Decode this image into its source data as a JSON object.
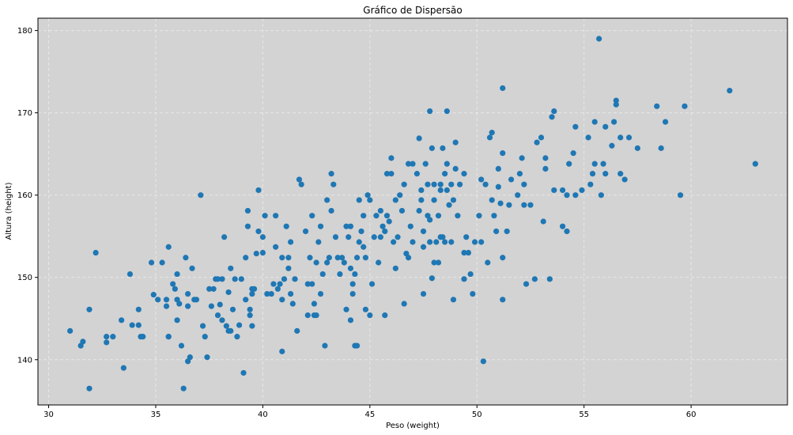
{
  "chart_data": {
    "type": "scatter",
    "title": "Gráfico de Dispersão",
    "xlabel": "Peso (weight)",
    "ylabel": "Altura (height)",
    "xlim": [
      29.5,
      64.5
    ],
    "ylim": [
      134.5,
      181.5
    ],
    "xticks": [
      30,
      35,
      40,
      45,
      50,
      55,
      60
    ],
    "yticks": [
      140,
      150,
      160,
      170,
      180
    ],
    "grid": true,
    "background": "#d3d3d3",
    "marker_color": "#1f77b4",
    "points": [
      [
        31.0,
        143.5
      ],
      [
        31.5,
        141.7
      ],
      [
        31.6,
        142.2
      ],
      [
        31.9,
        136.5
      ],
      [
        31.9,
        146.1
      ],
      [
        32.2,
        153.0
      ],
      [
        32.7,
        142.8
      ],
      [
        32.7,
        142.1
      ],
      [
        33.0,
        142.8
      ],
      [
        33.4,
        144.8
      ],
      [
        33.5,
        139.0
      ],
      [
        33.8,
        150.4
      ],
      [
        33.9,
        144.2
      ],
      [
        34.2,
        146.1
      ],
      [
        34.2,
        144.2
      ],
      [
        34.3,
        142.8
      ],
      [
        34.4,
        142.8
      ],
      [
        34.8,
        151.8
      ],
      [
        34.9,
        147.9
      ],
      [
        35.1,
        147.3
      ],
      [
        35.3,
        151.8
      ],
      [
        35.5,
        146.5
      ],
      [
        35.5,
        147.3
      ],
      [
        35.6,
        153.7
      ],
      [
        35.6,
        142.8
      ],
      [
        35.6,
        142.8
      ],
      [
        35.8,
        149.2
      ],
      [
        35.9,
        148.6
      ],
      [
        36.0,
        150.4
      ],
      [
        36.0,
        147.3
      ],
      [
        36.0,
        144.8
      ],
      [
        36.1,
        146.8
      ],
      [
        36.2,
        141.7
      ],
      [
        36.3,
        136.5
      ],
      [
        36.4,
        152.4
      ],
      [
        36.5,
        146.5
      ],
      [
        36.5,
        139.8
      ],
      [
        36.5,
        148.0
      ],
      [
        36.6,
        140.3
      ],
      [
        36.7,
        151.1
      ],
      [
        36.8,
        147.3
      ],
      [
        36.9,
        147.3
      ],
      [
        37.1,
        160.0
      ],
      [
        37.2,
        144.1
      ],
      [
        37.3,
        142.8
      ],
      [
        37.4,
        140.3
      ],
      [
        37.5,
        148.6
      ],
      [
        37.6,
        146.5
      ],
      [
        37.7,
        148.6
      ],
      [
        37.8,
        149.8
      ],
      [
        37.9,
        145.4
      ],
      [
        37.9,
        149.8
      ],
      [
        38.0,
        146.7
      ],
      [
        38.1,
        149.8
      ],
      [
        38.1,
        144.8
      ],
      [
        38.2,
        154.9
      ],
      [
        38.3,
        144.1
      ],
      [
        38.4,
        143.5
      ],
      [
        38.4,
        148.2
      ],
      [
        38.5,
        151.1
      ],
      [
        38.5,
        143.5
      ],
      [
        38.6,
        146.1
      ],
      [
        38.7,
        149.8
      ],
      [
        38.8,
        142.8
      ],
      [
        38.9,
        144.2
      ],
      [
        39.0,
        149.8
      ],
      [
        39.1,
        138.4
      ],
      [
        39.2,
        152.4
      ],
      [
        39.2,
        147.3
      ],
      [
        39.3,
        158.1
      ],
      [
        39.3,
        156.2
      ],
      [
        39.4,
        146.1
      ],
      [
        39.4,
        145.4
      ],
      [
        39.5,
        148.6
      ],
      [
        39.5,
        144.1
      ],
      [
        39.5,
        148.0
      ],
      [
        39.6,
        148.6
      ],
      [
        39.7,
        152.9
      ],
      [
        39.8,
        155.6
      ],
      [
        39.8,
        160.6
      ],
      [
        40.0,
        154.9
      ],
      [
        40.0,
        153.0
      ],
      [
        40.1,
        157.5
      ],
      [
        40.2,
        148.0
      ],
      [
        40.4,
        148.0
      ],
      [
        40.5,
        149.2
      ],
      [
        40.6,
        153.7
      ],
      [
        40.6,
        157.5
      ],
      [
        40.7,
        148.6
      ],
      [
        40.8,
        149.2
      ],
      [
        40.9,
        152.4
      ],
      [
        40.9,
        147.3
      ],
      [
        40.9,
        141.0
      ],
      [
        41.0,
        149.8
      ],
      [
        41.1,
        156.2
      ],
      [
        41.2,
        151.1
      ],
      [
        41.2,
        152.4
      ],
      [
        41.3,
        154.3
      ],
      [
        41.3,
        148.0
      ],
      [
        41.4,
        146.8
      ],
      [
        41.5,
        149.8
      ],
      [
        41.6,
        143.5
      ],
      [
        41.7,
        161.9
      ],
      [
        41.8,
        161.3
      ],
      [
        42.0,
        155.6
      ],
      [
        42.1,
        149.2
      ],
      [
        42.1,
        145.4
      ],
      [
        42.2,
        152.4
      ],
      [
        42.3,
        149.2
      ],
      [
        42.3,
        157.5
      ],
      [
        42.4,
        146.8
      ],
      [
        42.4,
        145.4
      ],
      [
        42.5,
        151.8
      ],
      [
        42.5,
        145.4
      ],
      [
        42.6,
        154.3
      ],
      [
        42.7,
        156.2
      ],
      [
        42.7,
        148.0
      ],
      [
        42.8,
        150.4
      ],
      [
        42.9,
        141.7
      ],
      [
        43.0,
        151.8
      ],
      [
        43.0,
        159.4
      ],
      [
        43.1,
        152.4
      ],
      [
        43.2,
        158.1
      ],
      [
        43.2,
        162.6
      ],
      [
        43.3,
        161.3
      ],
      [
        43.4,
        154.9
      ],
      [
        43.5,
        152.4
      ],
      [
        43.6,
        150.4
      ],
      [
        43.7,
        152.4
      ],
      [
        43.8,
        151.8
      ],
      [
        43.9,
        156.2
      ],
      [
        43.9,
        146.1
      ],
      [
        44.0,
        154.9
      ],
      [
        44.1,
        144.8
      ],
      [
        44.1,
        151.1
      ],
      [
        44.1,
        156.2
      ],
      [
        44.2,
        149.2
      ],
      [
        44.2,
        148.0
      ],
      [
        44.3,
        141.7
      ],
      [
        44.3,
        150.4
      ],
      [
        44.4,
        141.7
      ],
      [
        44.4,
        152.4
      ],
      [
        44.5,
        159.4
      ],
      [
        44.5,
        154.3
      ],
      [
        44.6,
        155.6
      ],
      [
        44.7,
        157.5
      ],
      [
        44.7,
        153.7
      ],
      [
        44.8,
        146.1
      ],
      [
        44.8,
        152.4
      ],
      [
        44.9,
        160.0
      ],
      [
        45.0,
        145.4
      ],
      [
        45.0,
        159.4
      ],
      [
        45.1,
        149.2
      ],
      [
        45.2,
        154.9
      ],
      [
        45.3,
        157.5
      ],
      [
        45.4,
        151.8
      ],
      [
        45.5,
        158.1
      ],
      [
        45.5,
        154.9
      ],
      [
        45.6,
        156.2
      ],
      [
        45.7,
        155.6
      ],
      [
        45.7,
        145.4
      ],
      [
        45.8,
        157.5
      ],
      [
        45.8,
        162.6
      ],
      [
        45.9,
        156.8
      ],
      [
        46.0,
        164.5
      ],
      [
        46.0,
        162.6
      ],
      [
        46.1,
        154.3
      ],
      [
        46.2,
        159.4
      ],
      [
        46.2,
        151.1
      ],
      [
        46.3,
        154.9
      ],
      [
        46.4,
        160.0
      ],
      [
        46.5,
        158.1
      ],
      [
        46.6,
        146.8
      ],
      [
        46.6,
        161.3
      ],
      [
        46.7,
        152.9
      ],
      [
        46.8,
        152.4
      ],
      [
        46.8,
        163.8
      ],
      [
        46.9,
        156.2
      ],
      [
        47.0,
        154.3
      ],
      [
        47.0,
        163.8
      ],
      [
        47.2,
        162.6
      ],
      [
        47.3,
        166.9
      ],
      [
        47.3,
        158.1
      ],
      [
        47.4,
        159.4
      ],
      [
        47.4,
        160.6
      ],
      [
        47.5,
        155.6
      ],
      [
        47.5,
        148.0
      ],
      [
        47.5,
        153.7
      ],
      [
        47.6,
        163.8
      ],
      [
        47.7,
        157.5
      ],
      [
        47.7,
        161.3
      ],
      [
        47.8,
        154.3
      ],
      [
        47.8,
        170.2
      ],
      [
        47.8,
        157.0
      ],
      [
        47.9,
        149.9
      ],
      [
        47.9,
        165.7
      ],
      [
        48.0,
        161.3
      ],
      [
        48.0,
        159.4
      ],
      [
        48.0,
        151.8
      ],
      [
        48.1,
        154.3
      ],
      [
        48.2,
        151.8
      ],
      [
        48.2,
        157.5
      ],
      [
        48.3,
        160.6
      ],
      [
        48.3,
        161.3
      ],
      [
        48.3,
        154.9
      ],
      [
        48.4,
        154.9
      ],
      [
        48.4,
        165.7
      ],
      [
        48.5,
        162.6
      ],
      [
        48.5,
        154.3
      ],
      [
        48.6,
        170.2
      ],
      [
        48.6,
        160.6
      ],
      [
        48.6,
        163.8
      ],
      [
        48.7,
        158.8
      ],
      [
        48.8,
        154.3
      ],
      [
        48.8,
        161.3
      ],
      [
        48.9,
        159.4
      ],
      [
        48.9,
        147.3
      ],
      [
        49.0,
        166.4
      ],
      [
        49.0,
        163.2
      ],
      [
        49.1,
        157.5
      ],
      [
        49.2,
        161.3
      ],
      [
        49.4,
        162.6
      ],
      [
        49.4,
        149.8
      ],
      [
        49.4,
        153.0
      ],
      [
        49.5,
        154.9
      ],
      [
        49.6,
        153.0
      ],
      [
        49.7,
        150.4
      ],
      [
        49.8,
        148.0
      ],
      [
        49.9,
        154.3
      ],
      [
        50.1,
        157.5
      ],
      [
        50.2,
        154.3
      ],
      [
        50.2,
        161.9
      ],
      [
        50.3,
        139.8
      ],
      [
        50.4,
        161.3
      ],
      [
        50.5,
        151.8
      ],
      [
        50.6,
        167.0
      ],
      [
        50.7,
        159.4
      ],
      [
        50.7,
        167.6
      ],
      [
        50.8,
        157.5
      ],
      [
        50.9,
        155.6
      ],
      [
        51.0,
        161.0
      ],
      [
        51.0,
        163.2
      ],
      [
        51.1,
        159.0
      ],
      [
        51.2,
        165.1
      ],
      [
        51.2,
        152.4
      ],
      [
        51.2,
        147.3
      ],
      [
        51.2,
        173.0
      ],
      [
        51.4,
        155.6
      ],
      [
        51.5,
        158.8
      ],
      [
        51.6,
        161.9
      ],
      [
        51.9,
        160.0
      ],
      [
        52.0,
        162.6
      ],
      [
        52.1,
        164.5
      ],
      [
        52.2,
        158.8
      ],
      [
        52.2,
        161.3
      ],
      [
        52.3,
        149.2
      ],
      [
        52.5,
        158.8
      ],
      [
        52.7,
        149.8
      ],
      [
        52.8,
        166.4
      ],
      [
        53.0,
        167.0
      ],
      [
        53.1,
        156.8
      ],
      [
        53.2,
        163.2
      ],
      [
        53.2,
        164.5
      ],
      [
        53.4,
        149.8
      ],
      [
        53.5,
        169.5
      ],
      [
        53.6,
        170.2
      ],
      [
        53.6,
        160.6
      ],
      [
        54.0,
        156.2
      ],
      [
        54.0,
        160.6
      ],
      [
        54.2,
        160.0
      ],
      [
        54.2,
        155.6
      ],
      [
        54.3,
        163.8
      ],
      [
        54.5,
        165.1
      ],
      [
        54.6,
        160.0
      ],
      [
        54.6,
        168.3
      ],
      [
        54.9,
        160.6
      ],
      [
        55.2,
        167.0
      ],
      [
        55.3,
        161.3
      ],
      [
        55.4,
        162.6
      ],
      [
        55.5,
        168.9
      ],
      [
        55.5,
        163.8
      ],
      [
        55.7,
        179.0
      ],
      [
        55.8,
        160.0
      ],
      [
        55.9,
        163.8
      ],
      [
        56.0,
        168.3
      ],
      [
        56.0,
        162.6
      ],
      [
        56.3,
        166.0
      ],
      [
        56.4,
        168.9
      ],
      [
        56.5,
        171.5
      ],
      [
        56.5,
        171.0
      ],
      [
        56.7,
        162.6
      ],
      [
        56.7,
        167.0
      ],
      [
        56.9,
        161.9
      ],
      [
        57.1,
        167.0
      ],
      [
        57.5,
        165.7
      ],
      [
        58.4,
        170.8
      ],
      [
        58.6,
        165.7
      ],
      [
        58.8,
        168.9
      ],
      [
        59.5,
        160.0
      ],
      [
        59.7,
        170.8
      ],
      [
        61.8,
        172.7
      ],
      [
        63.0,
        163.8
      ]
    ]
  }
}
